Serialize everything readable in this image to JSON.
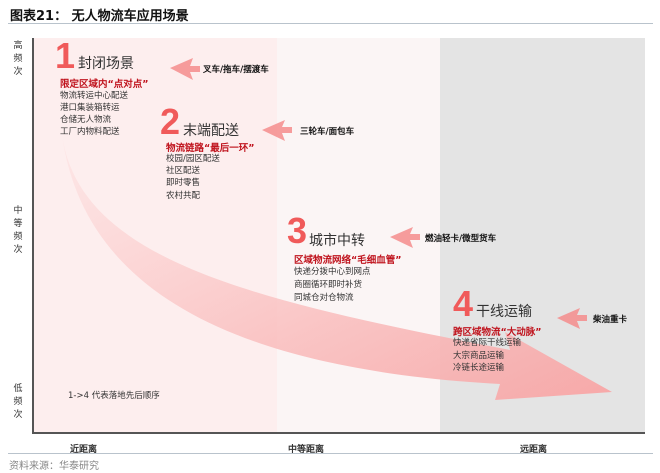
{
  "title": "图表21： 无人物流车应用场景",
  "source": "资料来源：华泰研究",
  "y_axis": {
    "high": "高频次",
    "mid": "中等频次",
    "low": "低频次"
  },
  "x_axis": {
    "near": "近距离",
    "mid": "中等距离",
    "far": "远距离"
  },
  "note": "1->4 代表落地先后顺序",
  "stages": [
    {
      "num": "1",
      "name": "封闭场景",
      "subtitle": "限定区域内“点对点”",
      "items": [
        "物流转运中心配送",
        "港口集装箱转运",
        "仓储无人物流",
        "工厂内物料配送"
      ],
      "vehicle": "叉车/拖车/摆渡车"
    },
    {
      "num": "2",
      "name": "末端配送",
      "subtitle": "物流链路“最后一环”",
      "items": [
        "校园/园区配送",
        "社区配送",
        "即时零售",
        "农村共配"
      ],
      "vehicle": "三轮车/面包车"
    },
    {
      "num": "3",
      "name": "城市中转",
      "subtitle": "区域物流网络“毛细血管”",
      "items": [
        "快递分拨中心到网点",
        "商圈循环即时补货",
        "同城仓对仓物流"
      ],
      "vehicle": "燃油轻卡/微型货车"
    },
    {
      "num": "4",
      "name": "干线运输",
      "subtitle": "跨区域物流“大动脉”",
      "items": [
        "快递省际干线运输",
        "大宗商品运输",
        "冷链长途运输"
      ],
      "vehicle": "柴油重卡"
    }
  ],
  "colors": {
    "accent": "#f05a5a",
    "subtitle": "#c0141e",
    "zone_near": "#fdeeee",
    "zone_mid": "#fbf5f5",
    "zone_far": "#e4e4e4"
  }
}
